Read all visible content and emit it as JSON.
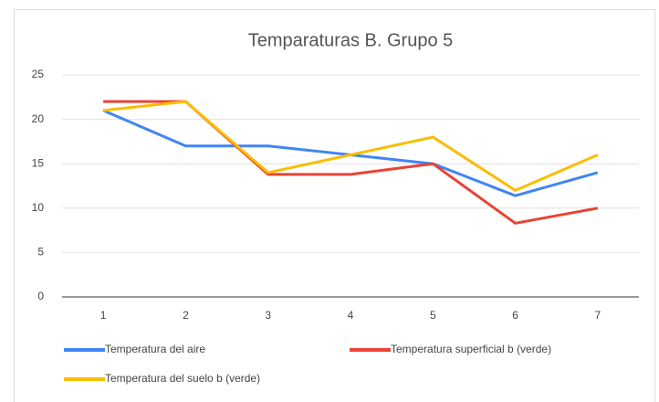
{
  "chart_data": {
    "type": "line",
    "title": "Temparaturas B. Grupo 5",
    "categories": [
      "1",
      "2",
      "3",
      "4",
      "5",
      "6",
      "7"
    ],
    "series": [
      {
        "name": "Temperatura del aire",
        "color": "#4285f4",
        "values": [
          21,
          17,
          17,
          16,
          15,
          11.4,
          14
        ]
      },
      {
        "name": "Temperatura superficial b (verde)",
        "color": "#ea4335",
        "values": [
          22,
          22,
          13.8,
          13.8,
          15,
          8.3,
          10
        ]
      },
      {
        "name": "Temperatura del suelo b (verde)",
        "color": "#fbbc04",
        "values": [
          21,
          22,
          14,
          16,
          18,
          12,
          16
        ]
      }
    ],
    "ylim": [
      0,
      25
    ],
    "yticks": [
      0,
      5,
      10,
      15,
      20,
      25
    ],
    "grid": true,
    "legend": "bottom"
  }
}
